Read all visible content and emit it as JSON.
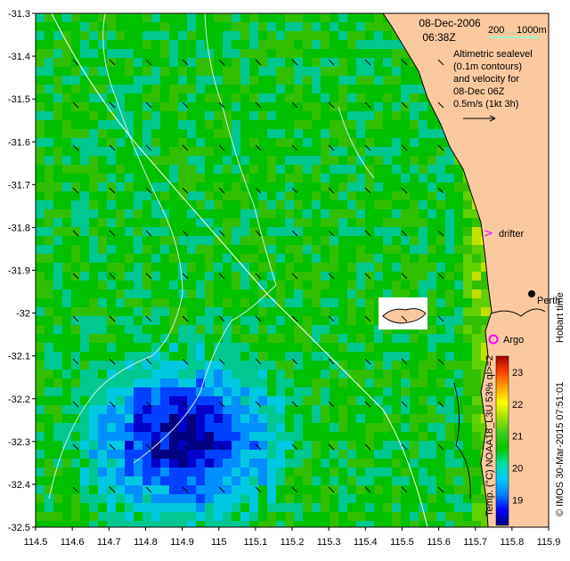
{
  "header": {
    "date": "08-Dec-2006",
    "time": "06:38Z",
    "isobath_labels": [
      "200",
      "1000m"
    ]
  },
  "legend": {
    "lines": [
      "Altimetric sealevel",
      "(0.1m contours)",
      "and velocity for",
      "08-Dec 06Z",
      "0.5m/s (1kt 3h)"
    ]
  },
  "markers": {
    "drifter": "drifter",
    "argo": "Argo",
    "city": "Perth"
  },
  "side_labels": {
    "right_credit": "Hobart time",
    "imos_credit": "© IMOS 30-Mar-2015 07:51:01",
    "colorbar_caption": "Temp. (°C) NOAA18_L3U 53% ql>=2"
  },
  "colorbar": {
    "ticks": [
      "23",
      "22",
      "21",
      "20",
      "19"
    ],
    "range": [
      18.2,
      23.5
    ],
    "colors": [
      "#000080",
      "#0000ff",
      "#0080ff",
      "#00c8ff",
      "#00e0a0",
      "#00c800",
      "#40c820",
      "#a0e000",
      "#ffff00",
      "#ffa000",
      "#ff4000",
      "#a00000"
    ]
  },
  "axes": {
    "x_ticks": [
      "114.5",
      "114.6",
      "114.7",
      "114.8",
      "114.9",
      "115",
      "115.1",
      "115.2",
      "115.3",
      "115.4",
      "115.5",
      "115.6",
      "115.7",
      "115.8",
      "115.9"
    ],
    "y_ticks": [
      "-31.3",
      "-31.4",
      "-31.5",
      "-31.6",
      "-31.7",
      "-31.8",
      "-31.9",
      "-32",
      "-32.1",
      "-32.2",
      "-32.3",
      "-32.4",
      "-32.5"
    ],
    "xlim": [
      114.5,
      115.9
    ],
    "ylim": [
      -32.5,
      -31.3
    ]
  },
  "colors": {
    "land": "#fbc9a0",
    "contour": "#c8eef4",
    "isobath_200": "#00c8c8",
    "isobath_1000": "#80ffd0",
    "drifter": "#ff00ff",
    "argo": "#ff00ff"
  }
}
